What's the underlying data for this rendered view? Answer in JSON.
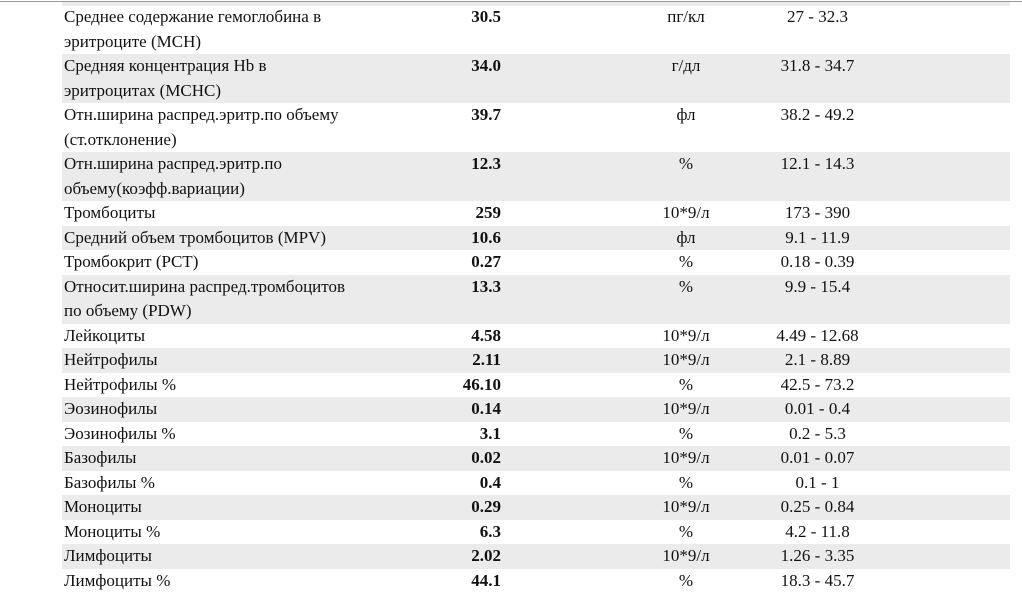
{
  "rows": [
    {
      "name": "Среднее содержание гемоглобина в\nэритроците (MCH)",
      "value": "30.5",
      "unit": "пг/кл",
      "range": "27 - 32.3"
    },
    {
      "name": "Средняя концентрация Hb в\nэритроцитах (MCHC)",
      "value": "34.0",
      "unit": "г/дл",
      "range": "31.8 - 34.7"
    },
    {
      "name": "Отн.ширина распред.эритр.по объему\n(ст.отклонение)",
      "value": "39.7",
      "unit": "фл",
      "range": "38.2 - 49.2"
    },
    {
      "name": "Отн.ширина распред.эритр.по\nобъему(коэфф.вариации)",
      "value": "12.3",
      "unit": "%",
      "range": "12.1 - 14.3"
    },
    {
      "name": "Тромбоциты",
      "value": "259",
      "unit": "10*9/л",
      "range": "173 - 390"
    },
    {
      "name": "Средний объем тромбоцитов (MPV)",
      "value": "10.6",
      "unit": "фл",
      "range": "9.1 - 11.9"
    },
    {
      "name": "Тромбокрит (PCT)",
      "value": "0.27",
      "unit": "%",
      "range": "0.18 - 0.39"
    },
    {
      "name": "Относит.ширина распред.тромбоцитов\nпо объему (PDW)",
      "value": "13.3",
      "unit": "%",
      "range": "9.9 - 15.4"
    },
    {
      "name": "Лейкоциты",
      "value": "4.58",
      "unit": "10*9/л",
      "range": "4.49 - 12.68"
    },
    {
      "name": "Нейтрофилы",
      "value": "2.11",
      "unit": "10*9/л",
      "range": "2.1 - 8.89"
    },
    {
      "name": "Нейтрофилы %",
      "value": "46.10",
      "unit": "%",
      "range": "42.5 - 73.2"
    },
    {
      "name": "Эозинофилы",
      "value": "0.14",
      "unit": "10*9/л",
      "range": "0.01 - 0.4"
    },
    {
      "name": "Эозинофилы %",
      "value": "3.1",
      "unit": "%",
      "range": "0.2 - 5.3"
    },
    {
      "name": "Базофилы",
      "value": "0.02",
      "unit": "10*9/л",
      "range": "0.01 - 0.07"
    },
    {
      "name": "Базофилы %",
      "value": "0.4",
      "unit": "%",
      "range": "0.1 - 1"
    },
    {
      "name": "Моноциты",
      "value": "0.29",
      "unit": "10*9/л",
      "range": "0.25 - 0.84"
    },
    {
      "name": "Моноциты %",
      "value": "6.3",
      "unit": "%",
      "range": "4.2 - 11.8"
    },
    {
      "name": "Лимфоциты",
      "value": "2.02",
      "unit": "10*9/л",
      "range": "1.26 - 3.35"
    },
    {
      "name": "Лимфоциты %",
      "value": "44.1",
      "unit": "%",
      "range": "18.3 - 45.7"
    }
  ],
  "colors": {
    "stripe": "#ebebeb"
  }
}
